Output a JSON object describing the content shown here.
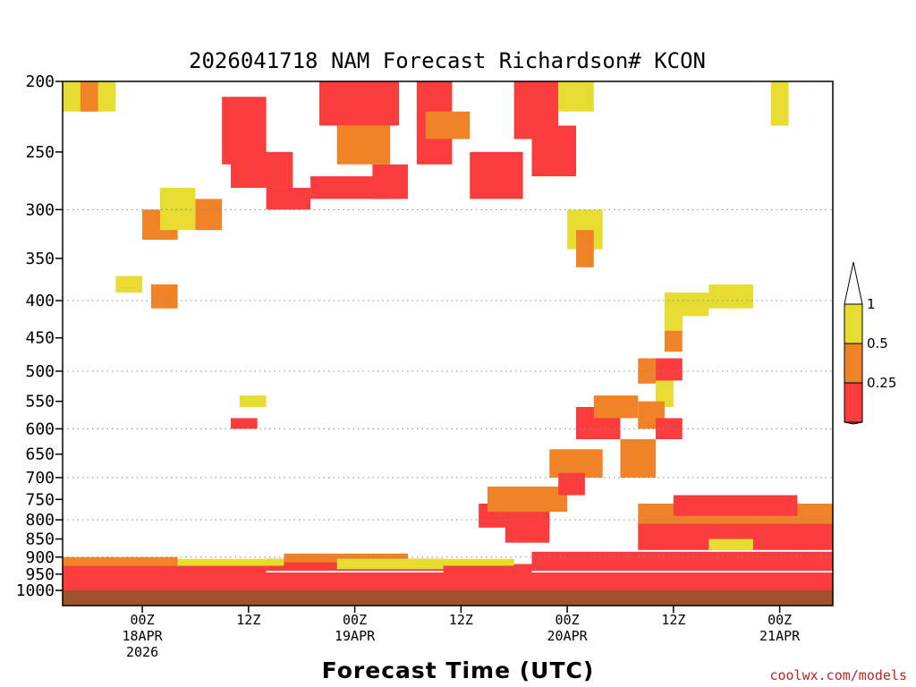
{
  "chart_data": {
    "type": "heatmap",
    "title": "2026041718 NAM Forecast Richardson# KCON",
    "xlabel": "Forecast Time (UTC)",
    "ylabel": "",
    "credit": "coolwx.com/models",
    "x_unit": "forecast hours from 2026-04-17 18Z",
    "xlim": [
      -3,
      84
    ],
    "x_ticks": [
      {
        "hour": 6,
        "line1": "00Z",
        "line2": "18APR",
        "line3": "2026"
      },
      {
        "hour": 18,
        "line1": "12Z",
        "line2": "",
        "line3": ""
      },
      {
        "hour": 30,
        "line1": "00Z",
        "line2": "19APR",
        "line3": ""
      },
      {
        "hour": 42,
        "line1": "12Z",
        "line2": "",
        "line3": ""
      },
      {
        "hour": 54,
        "line1": "00Z",
        "line2": "20APR",
        "line3": ""
      },
      {
        "hour": 66,
        "line1": "12Z",
        "line2": "",
        "line3": ""
      },
      {
        "hour": 78,
        "line1": "00Z",
        "line2": "21APR",
        "line3": ""
      }
    ],
    "y_unit": "hPa",
    "ylim": [
      1040,
      200
    ],
    "y_ticks": [
      200,
      250,
      300,
      350,
      400,
      450,
      500,
      550,
      600,
      650,
      700,
      750,
      800,
      850,
      900,
      950,
      1000
    ],
    "gridlines": [
      300,
      400,
      500,
      600,
      700,
      800,
      900
    ],
    "ground_band": [
      1000,
      1040
    ],
    "ground_color": "#a0522d",
    "legend": {
      "levels": [
        {
          "label": "1",
          "lo": 0.5,
          "hi": 1,
          "color": "#e6dc32"
        },
        {
          "label": "0.5",
          "lo": 0.25,
          "hi": 0.5,
          "color": "#f08228"
        },
        {
          "label": "0.25",
          "lo": 0,
          "hi": 0.25,
          "color": "#fa3c3c"
        }
      ],
      "over_color": "#ffffff",
      "under_color": "#fa3c3c"
    },
    "regions_note": "Approximate Richardson number categories (0=Ri<0.25, 1=0.25-0.5, 2=0.5-1) as [hour_start, hour_end, p_top, p_bottom, category]",
    "regions": [
      [
        -3,
        84,
        945,
        1000,
        0
      ],
      [
        -3,
        20,
        925,
        945,
        0
      ],
      [
        20,
        40,
        905,
        940,
        0
      ],
      [
        40,
        50,
        920,
        945,
        0
      ],
      [
        50,
        84,
        885,
        940,
        0
      ],
      [
        -3,
        10,
        900,
        925,
        1
      ],
      [
        10,
        22,
        905,
        925,
        2
      ],
      [
        22,
        36,
        890,
        915,
        1
      ],
      [
        28,
        40,
        905,
        935,
        2
      ],
      [
        40,
        48,
        905,
        925,
        2
      ],
      [
        44,
        52,
        760,
        820,
        0
      ],
      [
        45,
        54,
        720,
        780,
        1
      ],
      [
        47,
        52,
        790,
        860,
        0
      ],
      [
        52,
        58,
        640,
        700,
        1
      ],
      [
        53,
        56,
        690,
        740,
        0
      ],
      [
        55,
        60,
        560,
        620,
        0
      ],
      [
        57,
        62,
        540,
        580,
        1
      ],
      [
        60,
        64,
        620,
        700,
        1
      ],
      [
        64,
        66,
        500,
        560,
        2
      ],
      [
        62,
        64,
        480,
        520,
        1
      ],
      [
        64,
        67,
        480,
        515,
        0
      ],
      [
        65,
        67,
        420,
        470,
        1
      ],
      [
        65,
        67,
        390,
        440,
        2
      ],
      [
        62,
        65,
        550,
        600,
        1
      ],
      [
        64,
        67,
        580,
        620,
        0
      ],
      [
        62,
        85,
        810,
        880,
        0
      ],
      [
        62,
        85,
        760,
        810,
        1
      ],
      [
        66,
        80,
        740,
        790,
        0
      ],
      [
        70,
        75,
        850,
        880,
        2
      ],
      [
        -3,
        3,
        200,
        220,
        2
      ],
      [
        -1,
        1,
        200,
        220,
        1
      ],
      [
        15,
        20,
        210,
        260,
        0
      ],
      [
        16,
        23,
        250,
        280,
        0
      ],
      [
        20,
        25,
        280,
        300,
        0
      ],
      [
        26,
        35,
        200,
        230,
        0
      ],
      [
        28,
        34,
        230,
        260,
        1
      ],
      [
        32,
        36,
        260,
        290,
        0
      ],
      [
        25,
        34,
        270,
        290,
        0
      ],
      [
        37,
        41,
        200,
        260,
        0
      ],
      [
        38,
        43,
        220,
        240,
        1
      ],
      [
        43,
        49,
        250,
        290,
        0
      ],
      [
        48,
        53,
        200,
        240,
        0
      ],
      [
        50,
        55,
        230,
        270,
        0
      ],
      [
        53,
        57,
        200,
        220,
        2
      ],
      [
        54,
        58,
        300,
        340,
        2
      ],
      [
        55,
        57,
        320,
        360,
        1
      ],
      [
        6,
        10,
        300,
        330,
        1
      ],
      [
        7,
        10,
        380,
        410,
        1
      ],
      [
        8,
        12,
        280,
        320,
        2
      ],
      [
        12,
        15,
        290,
        320,
        1
      ],
      [
        16,
        19,
        580,
        600,
        0
      ],
      [
        17,
        20,
        540,
        560,
        2
      ],
      [
        3,
        6,
        370,
        390,
        2
      ],
      [
        65,
        70,
        390,
        420,
        2
      ],
      [
        70,
        75,
        380,
        410,
        2
      ],
      [
        77,
        79,
        200,
        230,
        2
      ]
    ]
  }
}
